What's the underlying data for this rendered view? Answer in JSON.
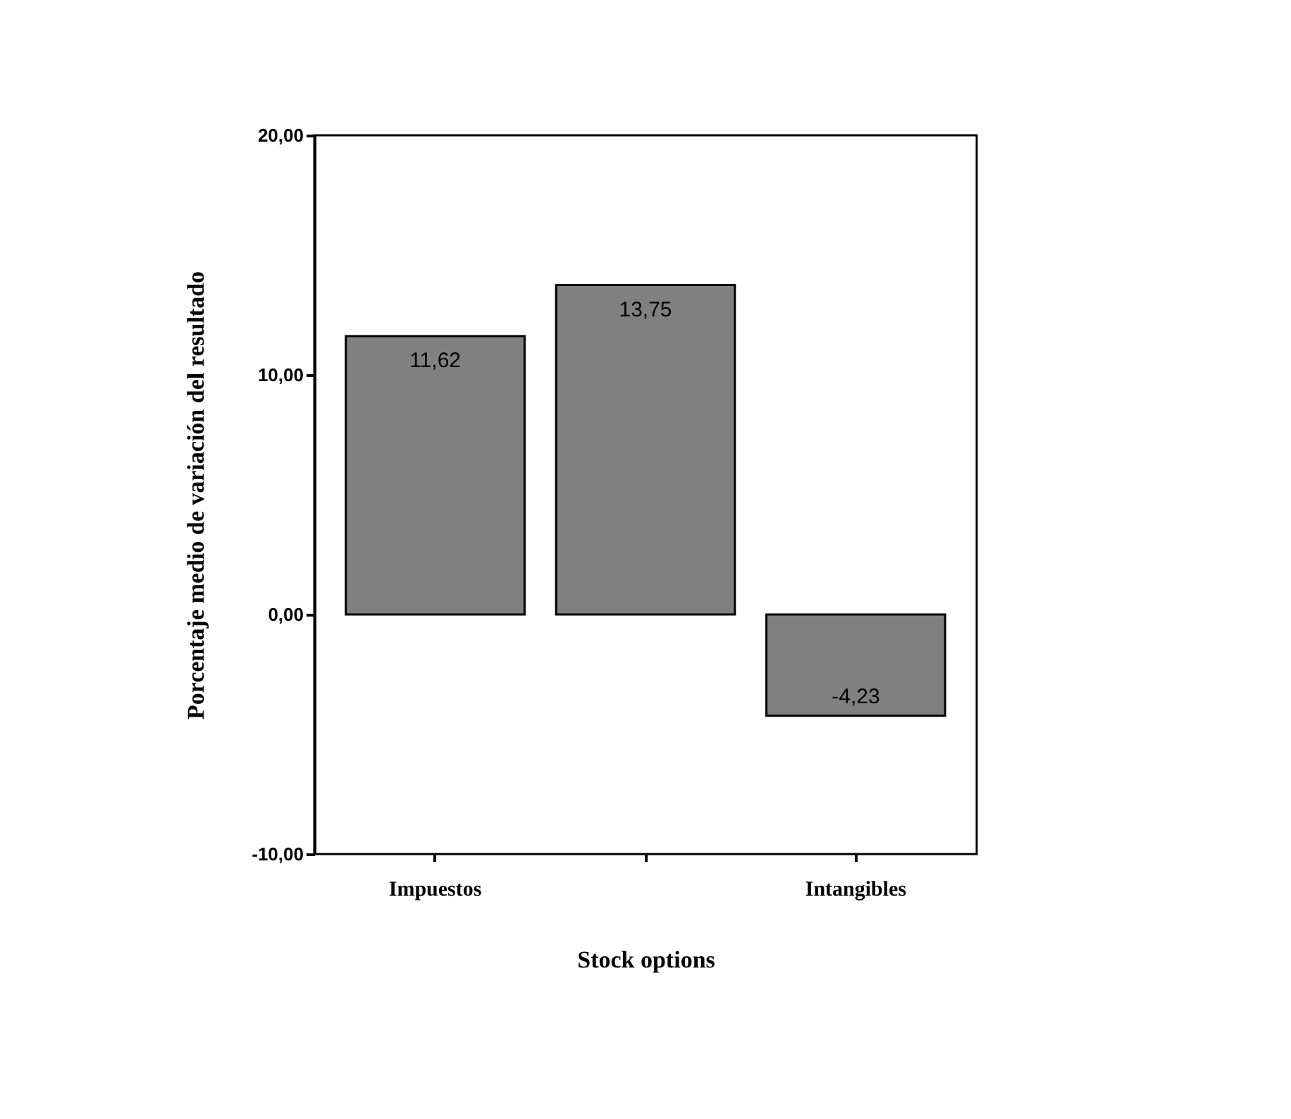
{
  "chart_data": {
    "type": "bar",
    "xlabel": "Stock options",
    "ylabel": "Porcentaje medio de variación del resultado",
    "categories": [
      "Impuestos",
      null,
      "Intangibles"
    ],
    "values": [
      11.62,
      13.75,
      -4.23
    ],
    "value_labels": [
      "11,62",
      "13,75",
      "-4,23"
    ],
    "color": "#808080",
    "ylim": [
      -10,
      20
    ],
    "yticks": [
      {
        "value": -10,
        "label": "-10,00"
      },
      {
        "value": 0,
        "label": "0,00"
      },
      {
        "value": 10,
        "label": "10,00"
      },
      {
        "value": 20,
        "label": "20,00"
      }
    ],
    "grid": false
  }
}
